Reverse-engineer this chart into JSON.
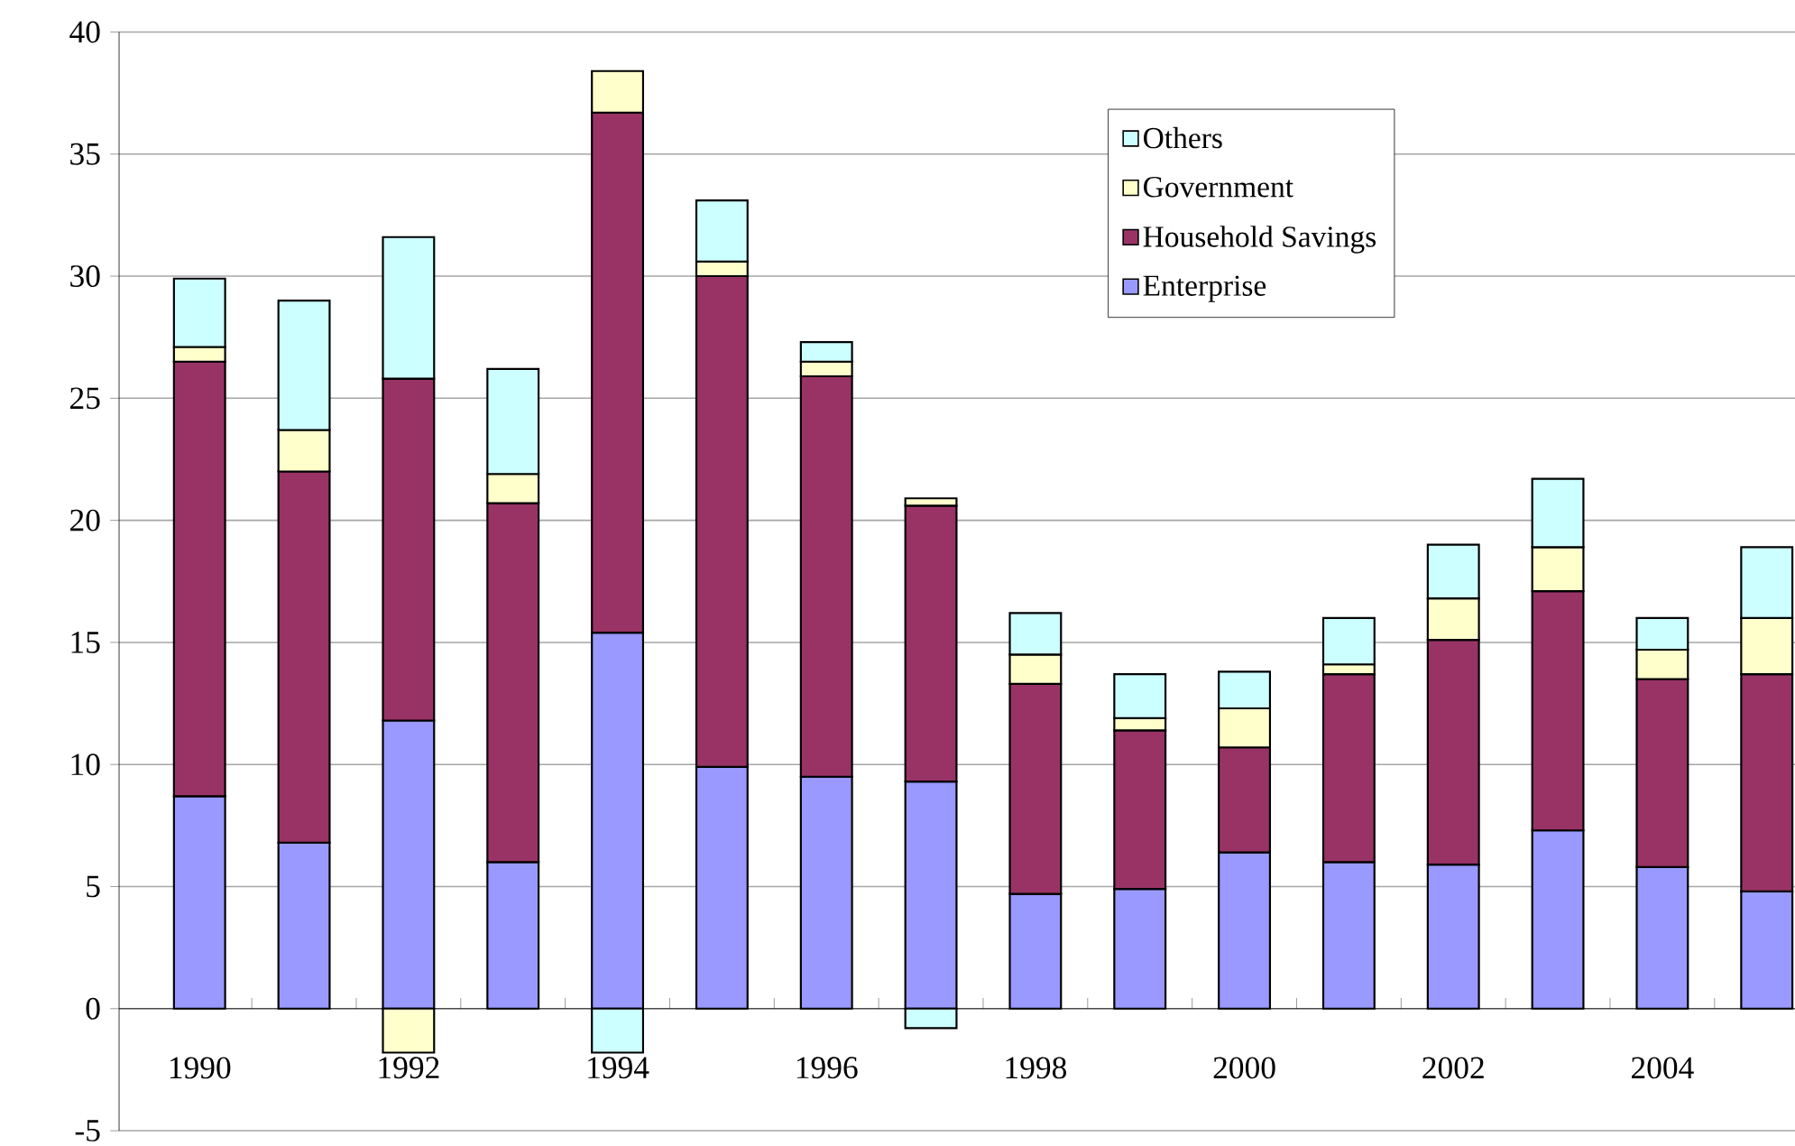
{
  "chart_data": {
    "type": "bar",
    "stacked": true,
    "categories": [
      "1990",
      null,
      "1992",
      null,
      "1994",
      null,
      "1996",
      null,
      "1998",
      null,
      "2000",
      null,
      "2002",
      null,
      "2004",
      null
    ],
    "series": [
      {
        "name": "Enterprise",
        "color": "#9999ff",
        "values": [
          8.7,
          6.8,
          11.8,
          6.0,
          15.4,
          9.9,
          9.5,
          9.3,
          4.7,
          4.9,
          6.4,
          6.0,
          5.9,
          7.3,
          5.8,
          4.8
        ]
      },
      {
        "name": "Household Savings",
        "color": "#993366",
        "values": [
          17.8,
          15.2,
          14.0,
          14.7,
          21.3,
          20.1,
          16.4,
          11.3,
          8.6,
          6.5,
          4.3,
          7.7,
          9.2,
          9.8,
          7.7,
          8.9
        ]
      },
      {
        "name": "Government",
        "color": "#ffffcc",
        "values": [
          0.6,
          1.7,
          -1.8,
          1.2,
          1.7,
          0.6,
          0.6,
          0.3,
          1.2,
          0.5,
          1.6,
          0.4,
          1.7,
          1.8,
          1.2,
          2.3
        ]
      },
      {
        "name": "Others",
        "color": "#ccffff",
        "values": [
          2.8,
          5.3,
          5.8,
          4.3,
          -1.8,
          2.5,
          0.8,
          -0.8,
          1.7,
          1.8,
          1.5,
          1.9,
          2.2,
          2.8,
          1.3,
          2.9
        ]
      }
    ],
    "ylim": [
      -5,
      40
    ],
    "yticks": [
      -5,
      0,
      5,
      10,
      15,
      20,
      25,
      30,
      35,
      40
    ],
    "grid": "y",
    "legend": "top right"
  }
}
